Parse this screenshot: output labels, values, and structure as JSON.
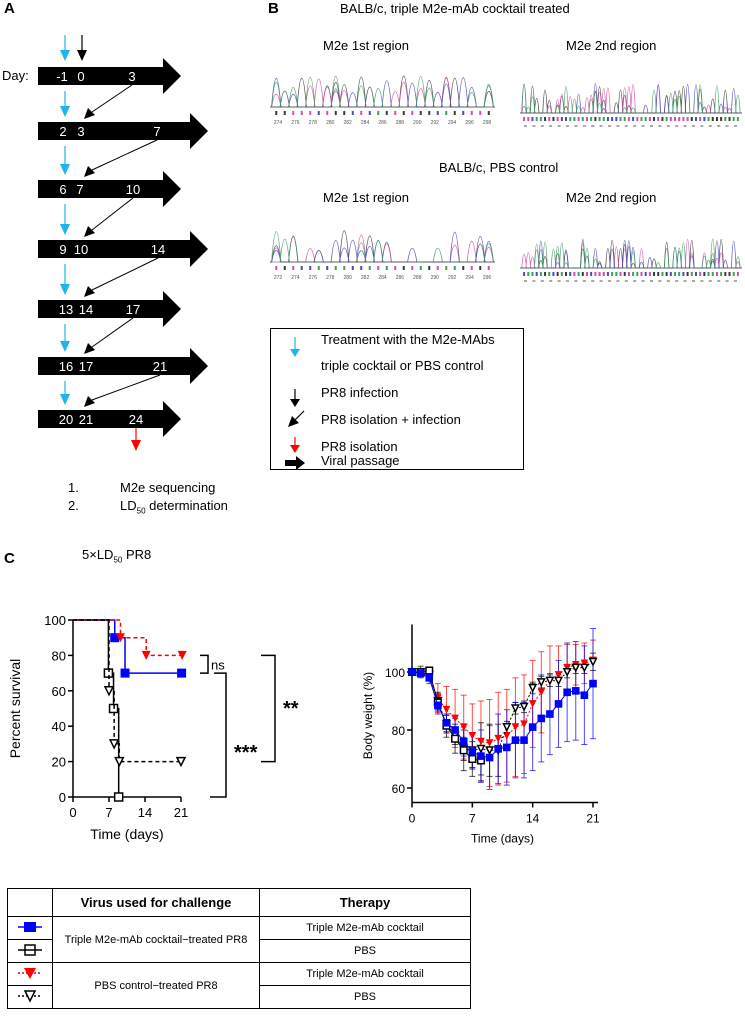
{
  "panelA": {
    "label": "A",
    "day_label": "Day:",
    "rows": [
      [
        "-1",
        "0",
        "3"
      ],
      [
        "2",
        "3",
        "7"
      ],
      [
        "6",
        "7",
        "10"
      ],
      [
        "9",
        "10",
        "14"
      ],
      [
        "13",
        "14",
        "17"
      ],
      [
        "16",
        "17",
        "21"
      ],
      [
        "20",
        "21",
        "24"
      ]
    ],
    "outcomes": [
      {
        "num": "1.",
        "text": "M2e sequencing"
      },
      {
        "num": "2.",
        "text": "LD",
        "sub": "50",
        "rest": " determination"
      }
    ],
    "colors": {
      "treatment": "#1fb4ea",
      "infection": "#000000",
      "isolation": "#ff0000"
    }
  },
  "panelB": {
    "label": "B",
    "treated_title": "BALB/c, triple M2e-mAb cocktail treated",
    "control_title": "BALB/c, PBS control",
    "region1": "M2e 1st region",
    "region2": "M2e 2nd region",
    "treated_ticks": [
      "274",
      "276",
      "278",
      "280",
      "282",
      "284",
      "286",
      "288",
      "290",
      "292",
      "294",
      "296",
      "298"
    ],
    "control_ticks": [
      "272",
      "274",
      "276",
      "278",
      "280",
      "282",
      "284",
      "286",
      "288",
      "290",
      "292",
      "294",
      "296"
    ]
  },
  "legend": {
    "items": [
      {
        "icon": "blue-down-arrow",
        "line1": "Treatment with the M2e-MAbs",
        "line2": "triple cocktail or PBS control"
      },
      {
        "icon": "black-down-arrow",
        "line1": "PR8 infection"
      },
      {
        "icon": "diagonal-arrow",
        "line1": "PR8 isolation + infection"
      },
      {
        "icon": "red-down-arrow",
        "line1": "PR8 isolation"
      },
      {
        "icon": "thick-right-arrow",
        "line1": "Viral passage"
      }
    ]
  },
  "panelC": {
    "label": "C",
    "title_prefix": "5×LD",
    "title_sub": "50",
    "title_suffix": " PR8",
    "significance": [
      "ns",
      "***",
      "**"
    ]
  },
  "chart_data": [
    {
      "type": "line",
      "subtype": "kaplan-meier step",
      "ylabel": "Percent survival",
      "xlabel": "Time (days)",
      "xlim": [
        0,
        21
      ],
      "ylim": [
        0,
        100
      ],
      "xticks": [
        "0",
        "7",
        "14",
        "21"
      ],
      "yticks": [
        "0",
        "20",
        "40",
        "60",
        "80",
        "100"
      ],
      "series": [
        {
          "color": "#0000ff",
          "marker": "filled-square",
          "dash": false,
          "points": [
            [
              0,
              100
            ],
            [
              8,
              90
            ],
            [
              10,
              70
            ],
            [
              21,
              70
            ]
          ]
        },
        {
          "color": "#000000",
          "marker": "open-square",
          "dash": false,
          "points": [
            [
              0,
              100
            ],
            [
              7,
              70
            ],
            [
              8,
              50
            ],
            [
              9,
              0
            ]
          ]
        },
        {
          "color": "#ff0000",
          "marker": "filled-down-triangle",
          "dash": true,
          "points": [
            [
              0,
              100
            ],
            [
              9,
              90
            ],
            [
              14,
              80
            ],
            [
              21,
              80
            ]
          ]
        },
        {
          "color": "#000000",
          "marker": "open-down-triangle",
          "dash": true,
          "points": [
            [
              0,
              100
            ],
            [
              7,
              60
            ],
            [
              8,
              30
            ],
            [
              9,
              20
            ],
            [
              21,
              20
            ]
          ]
        }
      ]
    },
    {
      "type": "line",
      "ylabel": "Body weight (%)",
      "xlabel": "Time (days)",
      "xlim": [
        0,
        21
      ],
      "ylim": [
        55,
        115
      ],
      "xticks": [
        "0",
        "7",
        "14",
        "21"
      ],
      "yticks": [
        "60",
        "80",
        "100"
      ],
      "series": [
        {
          "color": "#ff0000",
          "marker": "filled-down-triangle",
          "dash": "dotted",
          "values": [
            100,
            100,
            98,
            91,
            87,
            84,
            81,
            78,
            76,
            75.5,
            77,
            78,
            81,
            82,
            89,
            93,
            97,
            99,
            101.5,
            102.5,
            103,
            104
          ],
          "sd": [
            0,
            1,
            1,
            5,
            8,
            10,
            11,
            11,
            14,
            15,
            16,
            16,
            17,
            17,
            15,
            14,
            12,
            10,
            8,
            7,
            7,
            7
          ]
        },
        {
          "color": "#000000",
          "marker": "open-down-triangle",
          "dash": "dotted",
          "values": [
            100,
            100,
            99,
            90,
            82,
            78,
            73.5,
            73,
            73.5,
            73,
            73,
            81,
            87.5,
            88,
            94.5,
            96.5,
            97,
            97,
            100,
            101.5,
            101.5,
            103.5
          ],
          "sd": [
            0,
            0,
            1,
            3,
            3,
            3,
            4,
            6,
            9,
            9,
            9,
            2,
            2,
            2,
            2,
            2,
            2,
            2,
            2,
            2,
            2,
            3
          ]
        },
        {
          "color": "#000000",
          "marker": "open-square",
          "dash": false,
          "values": [
            100,
            100,
            100.5,
            89.5,
            81.5,
            77,
            73,
            70,
            69.5
          ],
          "sd": [
            0,
            2,
            1,
            3,
            4,
            5,
            7,
            6,
            7
          ]
        },
        {
          "color": "#0000ff",
          "marker": "filled-square",
          "dash": false,
          "values": [
            100,
            99.5,
            98,
            88.5,
            82.5,
            80,
            76,
            72.5,
            71,
            70.5,
            73.5,
            74,
            76.5,
            76.5,
            81,
            84,
            85.5,
            89,
            93,
            93.5,
            92,
            96
          ],
          "sd": [
            0,
            1,
            2,
            3,
            3,
            4,
            5,
            6,
            9,
            11,
            12,
            13,
            13,
            13,
            15,
            15,
            14,
            15,
            17,
            17,
            17,
            19
          ]
        }
      ]
    }
  ],
  "table": {
    "headers": [
      "",
      "Virus used for challenge",
      "Therapy"
    ],
    "groups": [
      {
        "virus": "Triple M2e-mAb cocktail−treated PR8",
        "rows": [
          {
            "marker": "filled-square",
            "color": "#0000ff",
            "therapy": "Triple M2e-mAb cocktail"
          },
          {
            "marker": "open-square",
            "color": "#000000",
            "therapy": "PBS"
          }
        ]
      },
      {
        "virus": "PBS control−treated PR8",
        "rows": [
          {
            "marker": "filled-down-triangle",
            "color": "#ff0000",
            "therapy": "Triple M2e-mAb cocktail"
          },
          {
            "marker": "open-down-triangle",
            "color": "#000000",
            "therapy": "PBS"
          }
        ]
      }
    ]
  }
}
